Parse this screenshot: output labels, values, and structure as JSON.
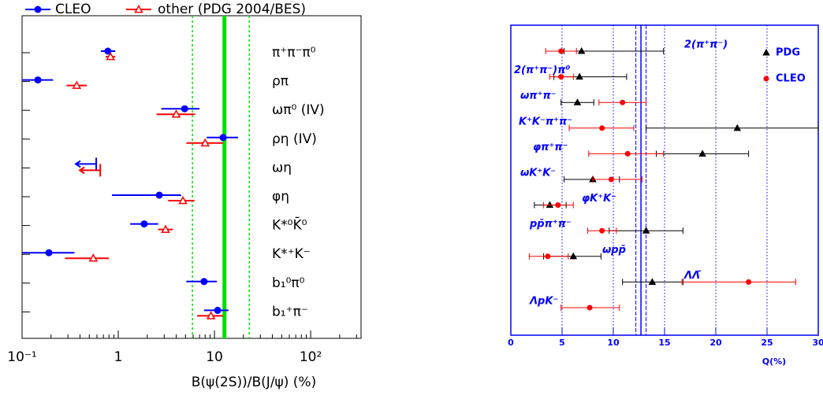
{
  "chart_data": [
    {
      "type": "errorbar",
      "xscale": "log",
      "xlabel": "B(ψ(2S))/B(J/ψ) (%)",
      "xlim": [
        0.1,
        334
      ],
      "xticks": [
        {
          "value": 0.1,
          "label": "10⁻¹"
        },
        1,
        10,
        {
          "value": 100,
          "label": "10²"
        }
      ],
      "ref_value": 12.7,
      "ref_color": "#00e000",
      "ref_lines": [
        5.9,
        23
      ],
      "categories": [
        "π⁺π⁻π⁰",
        "ρπ",
        "ωπ⁰ (IV)",
        "ρη (IV)",
        "ωη",
        "φη",
        "K*⁰K̄⁰",
        "K*⁺K⁻",
        "b₁⁰π⁰",
        "b₁⁺π⁻"
      ],
      "series": [
        {
          "name": "CLEO",
          "color": "#0000ff",
          "marker": "circle",
          "values": [
            0.78,
            0.146,
            4.9,
            12.3,
            null,
            2.67,
            1.86,
            0.19,
            7.8,
            10.8
          ],
          "error_low": [
            0.66,
            0.1,
            2.8,
            8.3,
            null,
            0.86,
            1.33,
            0.1,
            5.1,
            7.8
          ],
          "error_high": [
            0.93,
            0.21,
            7.0,
            17.6,
            null,
            4.5,
            2.6,
            0.35,
            10.6,
            14
          ],
          "upper_limits": [
            null,
            null,
            null,
            null,
            0.59,
            null,
            null,
            null,
            null,
            null
          ]
        },
        {
          "name": "other (PDG 2004/BES)",
          "color": "#ff0000",
          "marker": "triangle-open",
          "values": [
            0.83,
            0.37,
            4.0,
            8.0,
            null,
            4.7,
            3.1,
            0.55,
            null,
            9.2
          ],
          "error_low": [
            0.74,
            0.29,
            2.5,
            5.1,
            null,
            3.3,
            2.6,
            0.28,
            null,
            6.6
          ],
          "error_high": [
            0.93,
            0.47,
            6.3,
            12.3,
            null,
            6.2,
            3.7,
            0.8,
            null,
            12.3
          ],
          "upper_limits": [
            null,
            null,
            null,
            null,
            0.65,
            null,
            null,
            null,
            null,
            null
          ]
        }
      ]
    },
    {
      "type": "errorbar",
      "xscale": "linear",
      "xlabel": "Q(%)",
      "xlim": [
        0,
        30
      ],
      "xticks": [
        0,
        5,
        10,
        15,
        20,
        25,
        30
      ],
      "grid": true,
      "ref_lines_solid": [
        12.2,
        12.7,
        13.2
      ],
      "ref_color": "#0000ff",
      "categories": [
        "2(π⁺π⁻)",
        "2(π⁺π⁻)π⁰",
        "ωπ⁺π⁻",
        "K⁺K⁻π⁺π⁻",
        "φπ⁺π⁻",
        "ωK⁺K⁻",
        "φK⁺K⁻",
        "pp̄π⁺π⁻",
        "ωpp̄",
        "ΛΛ̄",
        "ΛpK⁻"
      ],
      "series": [
        {
          "name": "PDG",
          "color": "#000000",
          "marker": "triangle",
          "values": [
            6.9,
            6.7,
            6.5,
            22.1,
            18.7,
            8.0,
            3.8,
            13.2,
            6.1,
            13.8,
            null
          ],
          "error_low": [
            5.2,
            4.2,
            4.9,
            13.2,
            14.2,
            5.2,
            2.3,
            9.6,
            3.2,
            10.9,
            null
          ],
          "error_high": [
            14.9,
            11.3,
            8.1,
            30,
            23.2,
            10.6,
            5.4,
            16.8,
            8.8,
            16.8,
            null
          ]
        },
        {
          "name": "CLEO",
          "color": "#ff0000",
          "marker": "circle",
          "values": [
            4.9,
            4.9,
            10.9,
            8.9,
            11.4,
            9.8,
            4.6,
            8.9,
            3.6,
            23.2,
            7.7
          ],
          "error_low": [
            3.4,
            3.8,
            8.6,
            5.7,
            7.6,
            8.0,
            3.2,
            7.5,
            1.8,
            16.7,
            4.9
          ],
          "error_high": [
            6.4,
            6.1,
            13.2,
            12.0,
            14.9,
            12.8,
            6.1,
            10.3,
            5.6,
            27.8,
            10.6
          ]
        }
      ]
    }
  ]
}
